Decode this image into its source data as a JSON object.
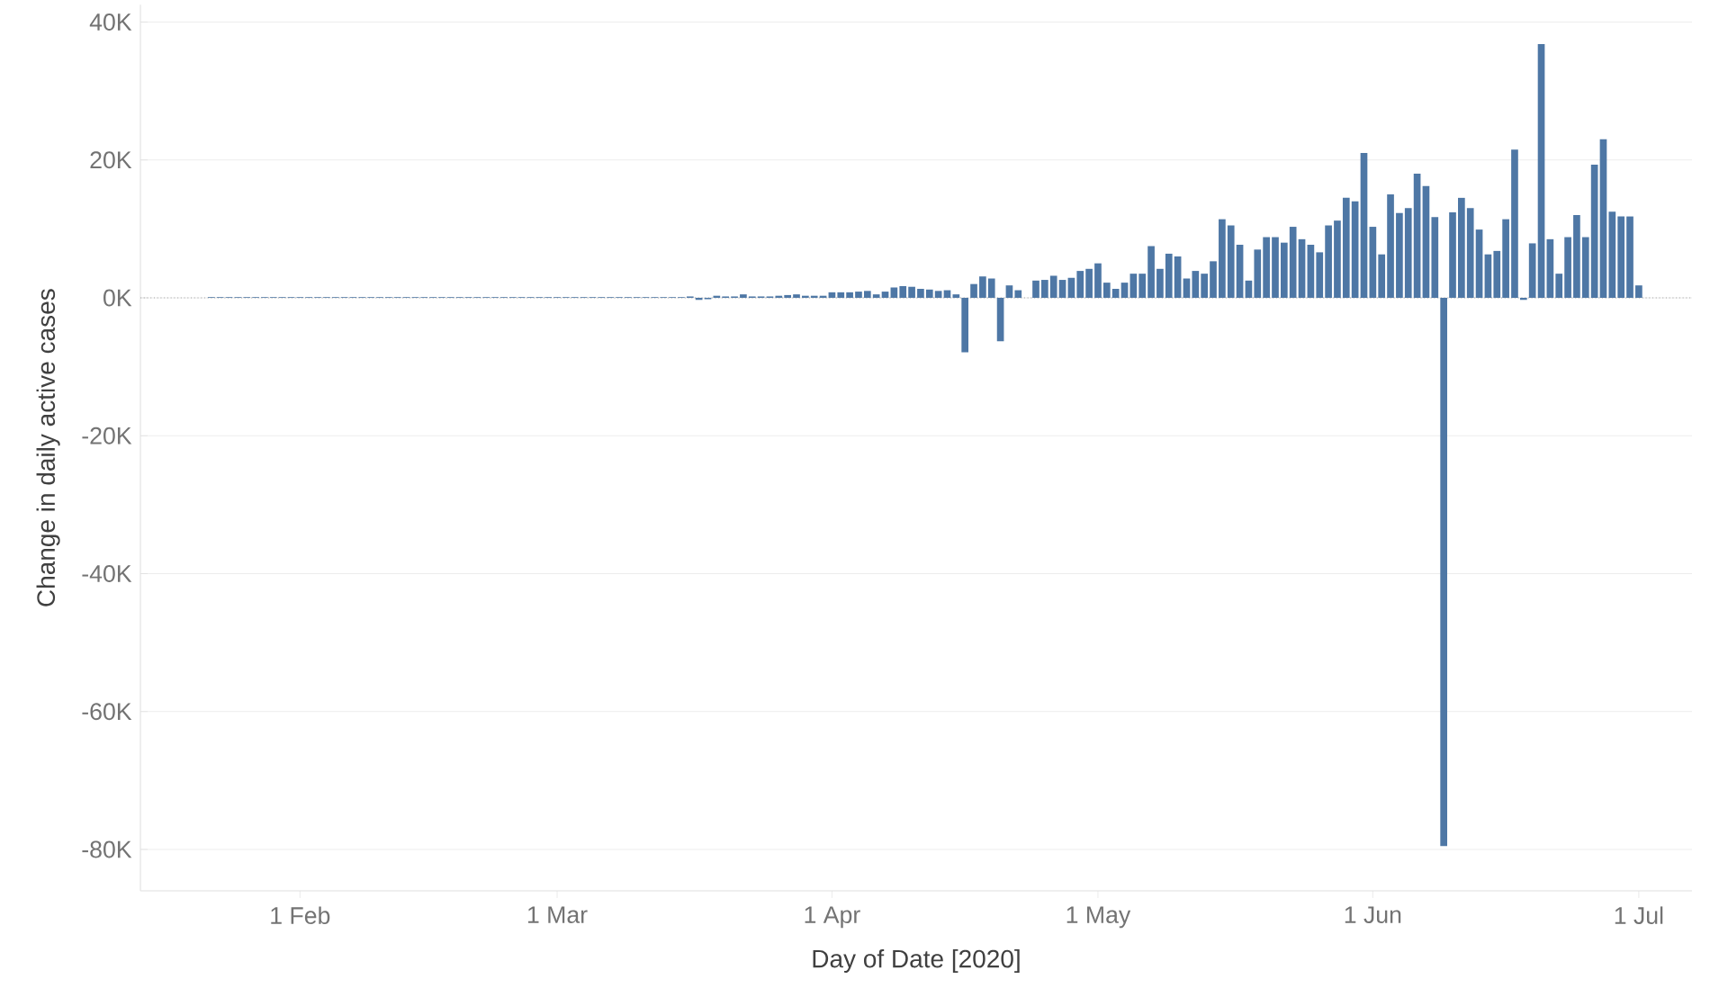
{
  "chart_data": {
    "type": "bar",
    "xlabel": "Day of Date [2020]",
    "ylabel": "Change in daily active cases",
    "color": "#4e77a5",
    "grid": "y",
    "ref_lines": [
      {
        "axis": "y",
        "value": 0,
        "color": "#a6a6a6",
        "line_style": "dotted"
      }
    ],
    "xlim": [
      "2020-01-14",
      "2020-07-07"
    ],
    "xticks": [
      {
        "value": "2020-02-01",
        "label": "1 Feb"
      },
      {
        "value": "2020-03-01",
        "label": "1 Mar"
      },
      {
        "value": "2020-04-01",
        "label": "1 Apr"
      },
      {
        "value": "2020-05-01",
        "label": "1 May"
      },
      {
        "value": "2020-06-01",
        "label": "1 Jun"
      },
      {
        "value": "2020-07-01",
        "label": "1 Jul"
      }
    ],
    "ylim": [
      -86000,
      42500
    ],
    "yticks": [
      {
        "value": -80000,
        "label": "-80K"
      },
      {
        "value": -60000,
        "label": "-60K"
      },
      {
        "value": -40000,
        "label": "-40K"
      },
      {
        "value": -20000,
        "label": "-20K"
      },
      {
        "value": 0,
        "label": "0K"
      },
      {
        "value": 20000,
        "label": "20K"
      },
      {
        "value": 40000,
        "label": "40K"
      }
    ],
    "x": [
      "2020-01-22",
      "2020-01-23",
      "2020-01-24",
      "2020-01-25",
      "2020-01-26",
      "2020-01-27",
      "2020-01-28",
      "2020-01-29",
      "2020-01-30",
      "2020-01-31",
      "2020-02-01",
      "2020-02-02",
      "2020-02-03",
      "2020-02-04",
      "2020-02-05",
      "2020-02-06",
      "2020-02-07",
      "2020-02-08",
      "2020-02-09",
      "2020-02-10",
      "2020-02-11",
      "2020-02-12",
      "2020-02-13",
      "2020-02-14",
      "2020-02-15",
      "2020-02-16",
      "2020-02-17",
      "2020-02-18",
      "2020-02-19",
      "2020-02-20",
      "2020-02-21",
      "2020-02-22",
      "2020-02-23",
      "2020-02-24",
      "2020-02-25",
      "2020-02-26",
      "2020-02-27",
      "2020-02-28",
      "2020-02-29",
      "2020-03-01",
      "2020-03-02",
      "2020-03-03",
      "2020-03-04",
      "2020-03-05",
      "2020-03-06",
      "2020-03-07",
      "2020-03-08",
      "2020-03-09",
      "2020-03-10",
      "2020-03-11",
      "2020-03-12",
      "2020-03-13",
      "2020-03-14",
      "2020-03-15",
      "2020-03-16",
      "2020-03-17",
      "2020-03-18",
      "2020-03-19",
      "2020-03-20",
      "2020-03-21",
      "2020-03-22",
      "2020-03-23",
      "2020-03-24",
      "2020-03-25",
      "2020-03-26",
      "2020-03-27",
      "2020-03-28",
      "2020-03-29",
      "2020-03-30",
      "2020-03-31",
      "2020-04-01",
      "2020-04-02",
      "2020-04-03",
      "2020-04-04",
      "2020-04-05",
      "2020-04-06",
      "2020-04-07",
      "2020-04-08",
      "2020-04-09",
      "2020-04-10",
      "2020-04-11",
      "2020-04-12",
      "2020-04-13",
      "2020-04-14",
      "2020-04-15",
      "2020-04-16",
      "2020-04-17",
      "2020-04-18",
      "2020-04-19",
      "2020-04-20",
      "2020-04-21",
      "2020-04-22",
      "2020-04-23",
      "2020-04-24",
      "2020-04-25",
      "2020-04-26",
      "2020-04-27",
      "2020-04-28",
      "2020-04-29",
      "2020-04-30",
      "2020-05-01",
      "2020-05-02",
      "2020-05-03",
      "2020-05-04",
      "2020-05-05",
      "2020-05-06",
      "2020-05-07",
      "2020-05-08",
      "2020-05-09",
      "2020-05-10",
      "2020-05-11",
      "2020-05-12",
      "2020-05-13",
      "2020-05-14",
      "2020-05-15",
      "2020-05-16",
      "2020-05-17",
      "2020-05-18",
      "2020-05-19",
      "2020-05-20",
      "2020-05-21",
      "2020-05-22",
      "2020-05-23",
      "2020-05-24",
      "2020-05-25",
      "2020-05-26",
      "2020-05-27",
      "2020-05-28",
      "2020-05-29",
      "2020-05-30",
      "2020-05-31",
      "2020-06-01",
      "2020-06-02",
      "2020-06-03",
      "2020-06-04",
      "2020-06-05",
      "2020-06-06",
      "2020-06-07",
      "2020-06-08",
      "2020-06-09",
      "2020-06-10",
      "2020-06-11",
      "2020-06-12",
      "2020-06-13",
      "2020-06-14",
      "2020-06-15",
      "2020-06-16",
      "2020-06-17",
      "2020-06-18",
      "2020-06-19",
      "2020-06-20",
      "2020-06-21",
      "2020-06-22",
      "2020-06-23",
      "2020-06-24",
      "2020-06-25",
      "2020-06-26",
      "2020-06-27",
      "2020-06-28",
      "2020-06-29",
      "2020-06-30",
      "2020-07-01"
    ],
    "values": [
      100,
      100,
      100,
      100,
      100,
      100,
      100,
      100,
      100,
      100,
      100,
      100,
      100,
      100,
      100,
      100,
      100,
      100,
      100,
      100,
      100,
      100,
      100,
      100,
      100,
      100,
      100,
      100,
      100,
      100,
      100,
      100,
      100,
      100,
      100,
      100,
      100,
      100,
      100,
      100,
      100,
      100,
      100,
      100,
      100,
      100,
      100,
      100,
      100,
      100,
      100,
      100,
      100,
      100,
      200,
      -300,
      -200,
      300,
      200,
      200,
      500,
      200,
      200,
      200,
      300,
      400,
      500,
      300,
      300,
      300,
      800,
      800,
      800,
      900,
      1000,
      500,
      900,
      1500,
      1700,
      1600,
      1300,
      1200,
      1000,
      1100,
      500,
      -7900,
      2000,
      3100,
      2800,
      -6300,
      1800,
      1100,
      0,
      2500,
      2600,
      3200,
      2600,
      2900,
      3900,
      4200,
      5000,
      2200,
      1300,
      2200,
      3500,
      3500,
      7500,
      4200,
      6400,
      6000,
      2800,
      3900,
      3500,
      5300,
      11400,
      10500,
      7700,
      2500,
      7000,
      8800,
      8800,
      8000,
      10300,
      8500,
      7700,
      6600,
      10500,
      11200,
      14500,
      14000,
      21000,
      10300,
      6300,
      15000,
      12300,
      13000,
      18000,
      16200,
      11700,
      -79500,
      12400,
      14500,
      13000,
      9900,
      6300,
      6800,
      11400,
      21500,
      -300,
      7900,
      36800,
      8500,
      3500,
      8800,
      12000,
      8800,
      19300,
      23000,
      12500,
      11800,
      11800,
      1800
    ]
  }
}
